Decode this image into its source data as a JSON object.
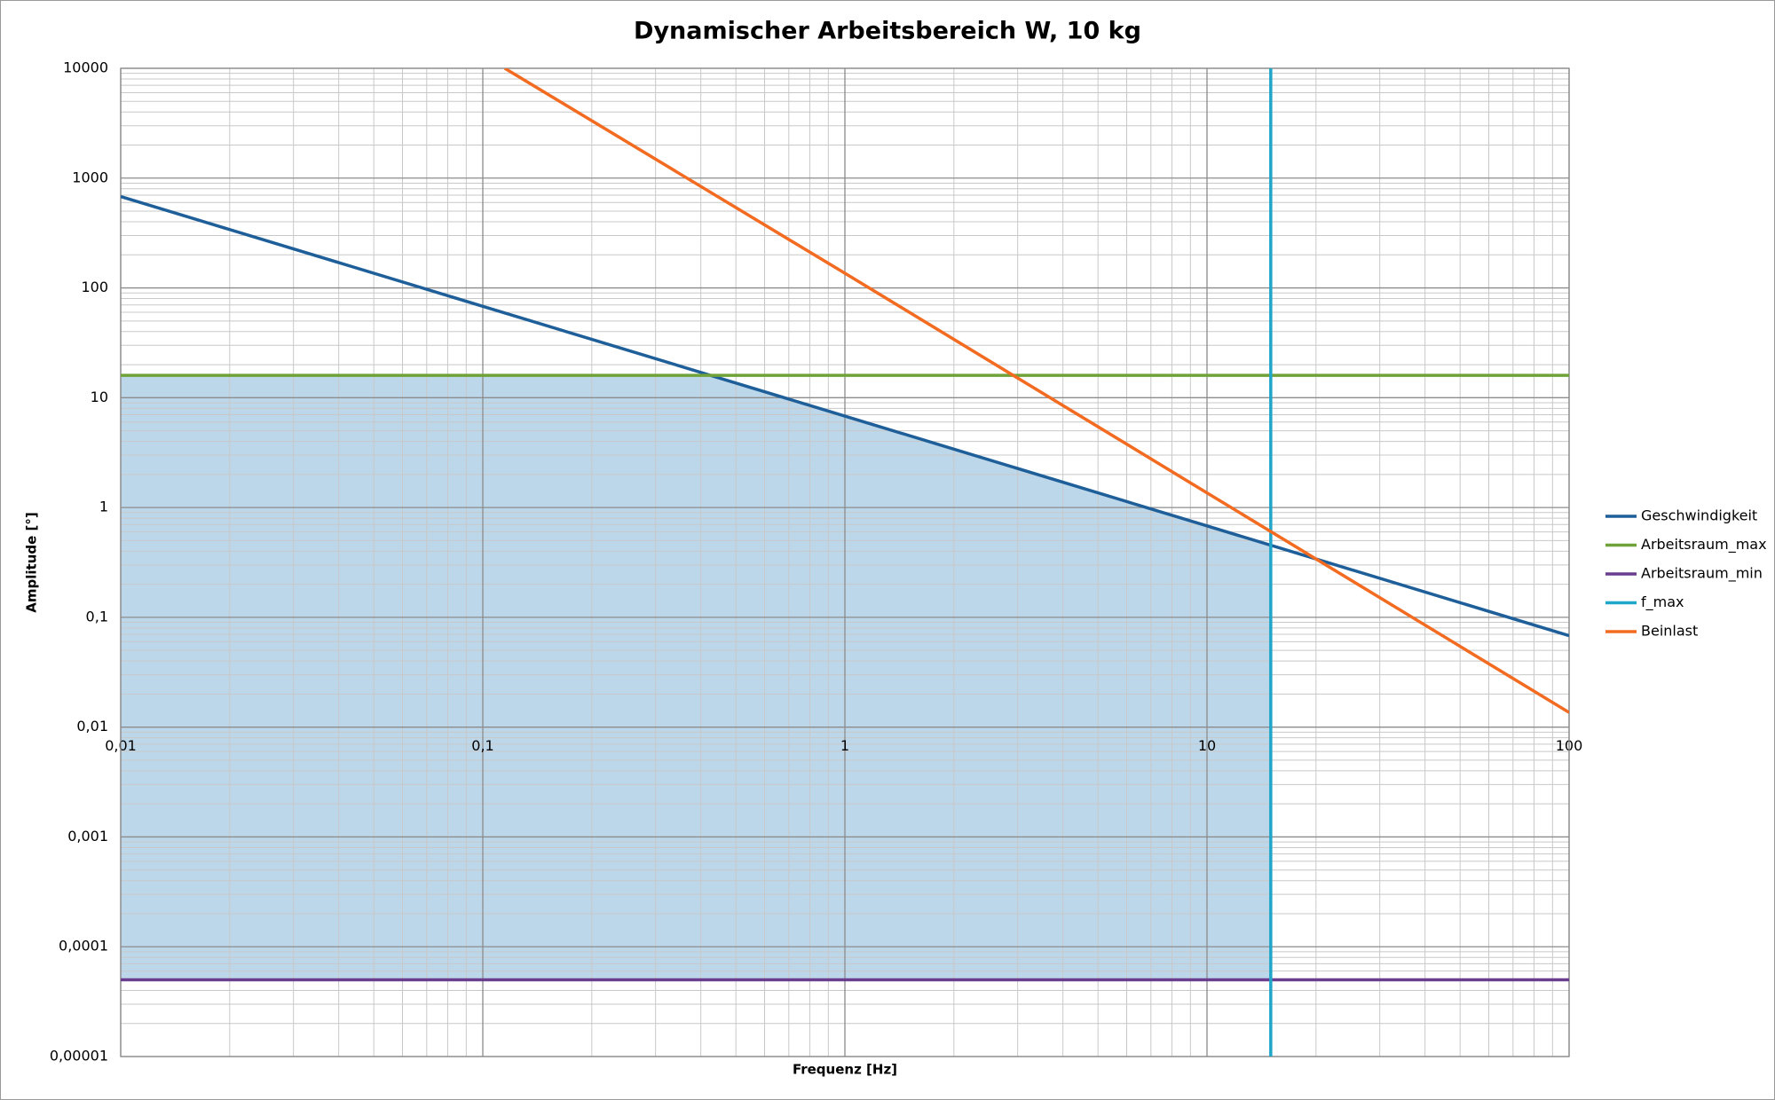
{
  "chart_data": {
    "type": "line",
    "title": "Dynamischer Arbeitsbereich W, 10 kg",
    "x_label": "Frequenz [Hz]",
    "y_label": "Amplitude [°]",
    "xscale": "log",
    "yscale": "log",
    "grid": true,
    "legend": "right",
    "working_area_color": "#bdd7ea",
    "xlim": [
      0.01,
      100
    ],
    "xticks": [
      {
        "value": 0.01,
        "label": "0,01"
      },
      {
        "value": 0.1,
        "label": "0,1"
      },
      1,
      10,
      100
    ],
    "ylim": [
      1e-05,
      10000
    ],
    "yticks": [
      {
        "value": 1e-05,
        "label": "0,00001"
      },
      {
        "value": 0.0001,
        "label": "0,0001"
      },
      {
        "value": 0.001,
        "label": "0,001"
      },
      {
        "value": 0.01,
        "label": "0,01"
      },
      {
        "value": 0.1,
        "label": "0,1"
      },
      1,
      10,
      100,
      1000,
      10000
    ],
    "series": [
      {
        "name": "Geschwindigkeit",
        "color": "#1f5f99",
        "x": [
          0.01,
          0.1,
          1,
          10,
          100
        ],
        "values": [
          680,
          68,
          6.8,
          0.68,
          0.068
        ]
      },
      {
        "name": "Arbeitsraum_max",
        "color": "#70a23a",
        "x": [
          0.01,
          100
        ],
        "values": [
          16,
          16
        ]
      },
      {
        "name": "Arbeitsraum_min",
        "color": "#6a3d8f",
        "x": [
          0.01,
          100
        ],
        "values": [
          5e-05,
          5e-05
        ]
      },
      {
        "name": "f_max",
        "color": "#1fa6c9",
        "x": [
          15,
          15
        ],
        "values": [
          1e-05,
          10000
        ]
      },
      {
        "name": "Beinlast",
        "color": "#f26b21",
        "x": [
          0.115,
          1,
          10,
          100
        ],
        "values": [
          10000,
          136,
          1.36,
          0.0136
        ]
      }
    ]
  }
}
